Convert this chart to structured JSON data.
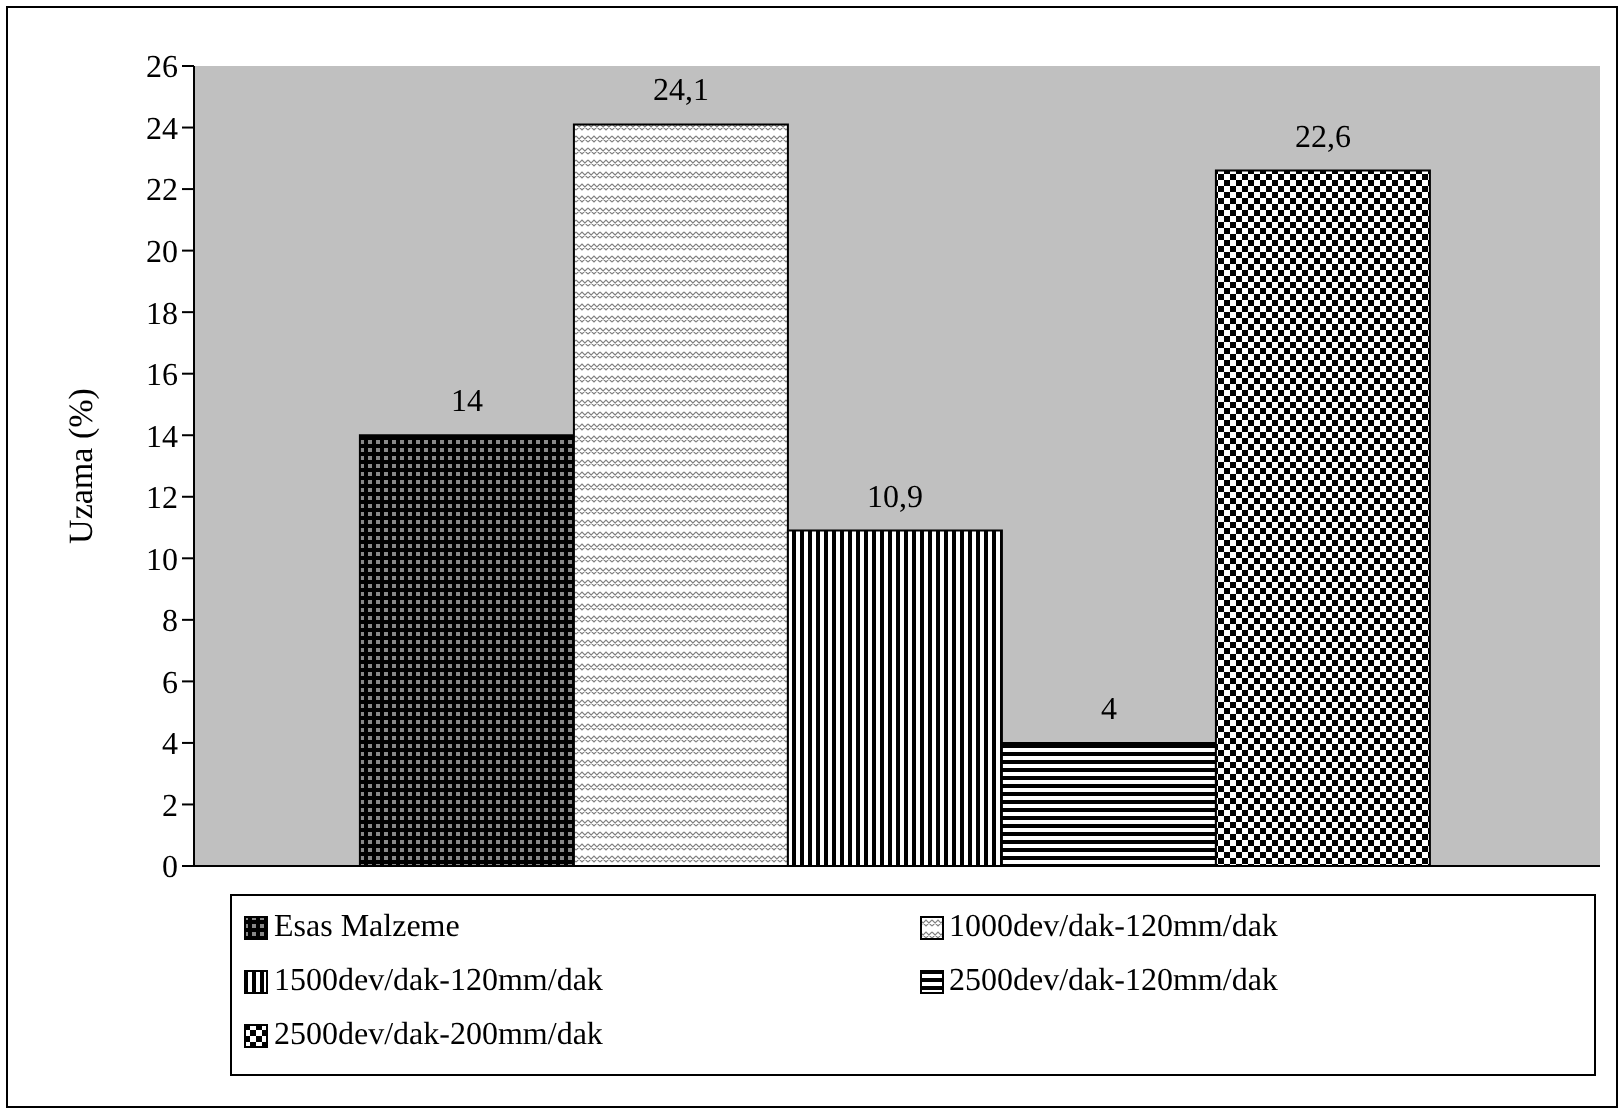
{
  "chart_data": {
    "type": "bar",
    "ylabel": "Uzama (%)",
    "categories": [
      null
    ],
    "series": [
      {
        "name": "Esas Malzeme",
        "color": "#000000",
        "values": [
          14
        ],
        "value_labels": [
          "14"
        ]
      },
      {
        "name": "1000dev/dak-120mm/dak",
        "color": "#000000",
        "values": [
          24.1
        ],
        "value_labels": [
          "24,1"
        ]
      },
      {
        "name": "1500dev/dak-120mm/dak",
        "color": "#000000",
        "values": [
          10.9
        ],
        "value_labels": [
          "10,9"
        ]
      },
      {
        "name": "2500dev/dak-120mm/dak",
        "color": "#000000",
        "values": [
          4
        ],
        "value_labels": [
          "4"
        ]
      },
      {
        "name": "2500dev/dak-200mm/dak",
        "color": "#000000",
        "values": [
          22.6
        ],
        "value_labels": [
          "22,6"
        ]
      }
    ],
    "ylim": [
      0,
      26
    ],
    "yticks": [
      0,
      2,
      4,
      6,
      8,
      10,
      12,
      14,
      16,
      18,
      20,
      22,
      24,
      26
    ],
    "legend": "bottom"
  }
}
